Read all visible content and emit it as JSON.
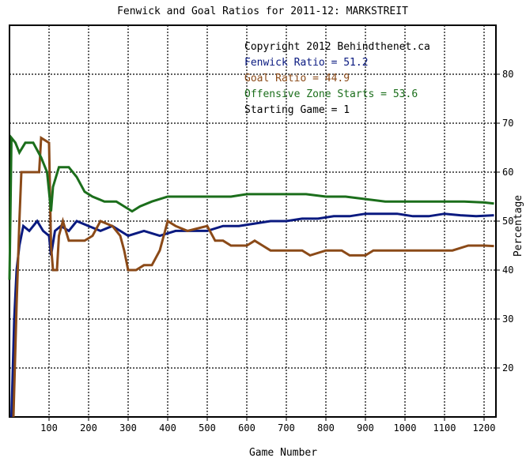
{
  "chart_data": {
    "type": "line",
    "title": "Fenwick and Goal Ratios for 2011-12: MARKSTREIT",
    "xlabel": "Game Number",
    "ylabel": "Percentage",
    "xlim": [
      0,
      1230
    ],
    "ylim": [
      10,
      90
    ],
    "x_ticks": [
      100,
      200,
      300,
      400,
      500,
      600,
      700,
      800,
      900,
      1000,
      1100,
      1200
    ],
    "x_tick_labels": [
      "100",
      "200",
      "300",
      "400",
      "500",
      "600",
      "700",
      "800",
      "900",
      "1000",
      "1100",
      "1200"
    ],
    "y_ticks": [
      20,
      30,
      40,
      50,
      60,
      70,
      80
    ],
    "y_tick_labels": [
      "20",
      "30",
      "40",
      "50",
      "60",
      "70",
      "80"
    ],
    "grid": true,
    "legend_position": "top-right",
    "annotations": [
      {
        "text": "Copyright 2012 Behindthenet.ca",
        "color": "#000000"
      },
      {
        "text": "Fenwick Ratio = 51.2",
        "color": "#0a1a80"
      },
      {
        "text": "Goal Ratio = 44.9",
        "color": "#8b4a18"
      },
      {
        "text": "Offensive Zone Starts = 53.6",
        "color": "#1b6e1b"
      },
      {
        "text": "Starting Game = 1",
        "color": "#000000"
      }
    ],
    "series": [
      {
        "name": "Fenwick Ratio",
        "color": "#0a1a80",
        "points": [
          [
            5,
            0
          ],
          [
            12,
            30
          ],
          [
            18,
            40
          ],
          [
            25,
            45
          ],
          [
            35,
            49
          ],
          [
            50,
            48
          ],
          [
            70,
            50
          ],
          [
            85,
            48
          ],
          [
            100,
            47
          ],
          [
            105,
            43
          ],
          [
            115,
            48
          ],
          [
            130,
            49
          ],
          [
            150,
            48
          ],
          [
            170,
            50
          ],
          [
            200,
            49
          ],
          [
            230,
            48
          ],
          [
            260,
            49
          ],
          [
            280,
            48
          ],
          [
            300,
            47
          ],
          [
            340,
            48
          ],
          [
            380,
            47
          ],
          [
            420,
            48
          ],
          [
            460,
            48
          ],
          [
            500,
            48
          ],
          [
            540,
            49
          ],
          [
            580,
            49
          ],
          [
            620,
            49.5
          ],
          [
            660,
            50
          ],
          [
            700,
            50
          ],
          [
            740,
            50.5
          ],
          [
            780,
            50.5
          ],
          [
            820,
            51
          ],
          [
            860,
            51
          ],
          [
            900,
            51.5
          ],
          [
            940,
            51.5
          ],
          [
            980,
            51.5
          ],
          [
            1020,
            51
          ],
          [
            1060,
            51
          ],
          [
            1100,
            51.5
          ],
          [
            1140,
            51.2
          ],
          [
            1180,
            51
          ],
          [
            1225,
            51.2
          ]
        ]
      },
      {
        "name": "Goal Ratio",
        "color": "#8b4a18",
        "points": [
          [
            10,
            0
          ],
          [
            18,
            33
          ],
          [
            25,
            50
          ],
          [
            30,
            60
          ],
          [
            50,
            60
          ],
          [
            75,
            60
          ],
          [
            80,
            67
          ],
          [
            100,
            66
          ],
          [
            105,
            45
          ],
          [
            110,
            40
          ],
          [
            120,
            40
          ],
          [
            125,
            47
          ],
          [
            135,
            50
          ],
          [
            150,
            46
          ],
          [
            190,
            46
          ],
          [
            210,
            47
          ],
          [
            230,
            50
          ],
          [
            260,
            49
          ],
          [
            280,
            47
          ],
          [
            290,
            44
          ],
          [
            300,
            40
          ],
          [
            320,
            40
          ],
          [
            340,
            41
          ],
          [
            360,
            41
          ],
          [
            380,
            44
          ],
          [
            390,
            47
          ],
          [
            400,
            50
          ],
          [
            420,
            49
          ],
          [
            450,
            48
          ],
          [
            500,
            49
          ],
          [
            520,
            46
          ],
          [
            540,
            46
          ],
          [
            560,
            45
          ],
          [
            600,
            45
          ],
          [
            620,
            46
          ],
          [
            640,
            45
          ],
          [
            660,
            44
          ],
          [
            700,
            44
          ],
          [
            740,
            44
          ],
          [
            760,
            43
          ],
          [
            800,
            44
          ],
          [
            840,
            44
          ],
          [
            860,
            43
          ],
          [
            880,
            43
          ],
          [
            900,
            43
          ],
          [
            920,
            44
          ],
          [
            960,
            44
          ],
          [
            1000,
            44
          ],
          [
            1040,
            44
          ],
          [
            1080,
            44
          ],
          [
            1120,
            44
          ],
          [
            1160,
            45
          ],
          [
            1200,
            45
          ],
          [
            1225,
            44.9
          ]
        ]
      },
      {
        "name": "Offensive Zone Starts",
        "color": "#1b6e1b",
        "points": [
          [
            0,
            38
          ],
          [
            5,
            67
          ],
          [
            15,
            66
          ],
          [
            25,
            64
          ],
          [
            40,
            66
          ],
          [
            60,
            66
          ],
          [
            80,
            63
          ],
          [
            95,
            60
          ],
          [
            105,
            52
          ],
          [
            110,
            57
          ],
          [
            125,
            61
          ],
          [
            150,
            61
          ],
          [
            170,
            59
          ],
          [
            190,
            56
          ],
          [
            210,
            55
          ],
          [
            240,
            54
          ],
          [
            270,
            54
          ],
          [
            290,
            53
          ],
          [
            310,
            52
          ],
          [
            330,
            53
          ],
          [
            360,
            54
          ],
          [
            400,
            55
          ],
          [
            440,
            55
          ],
          [
            480,
            55
          ],
          [
            520,
            55
          ],
          [
            560,
            55
          ],
          [
            600,
            55.5
          ],
          [
            650,
            55.5
          ],
          [
            700,
            55.5
          ],
          [
            750,
            55.5
          ],
          [
            800,
            55
          ],
          [
            850,
            55
          ],
          [
            900,
            54.5
          ],
          [
            950,
            54
          ],
          [
            1000,
            54
          ],
          [
            1050,
            54
          ],
          [
            1100,
            54
          ],
          [
            1150,
            54
          ],
          [
            1200,
            53.8
          ],
          [
            1225,
            53.6
          ]
        ]
      }
    ]
  }
}
